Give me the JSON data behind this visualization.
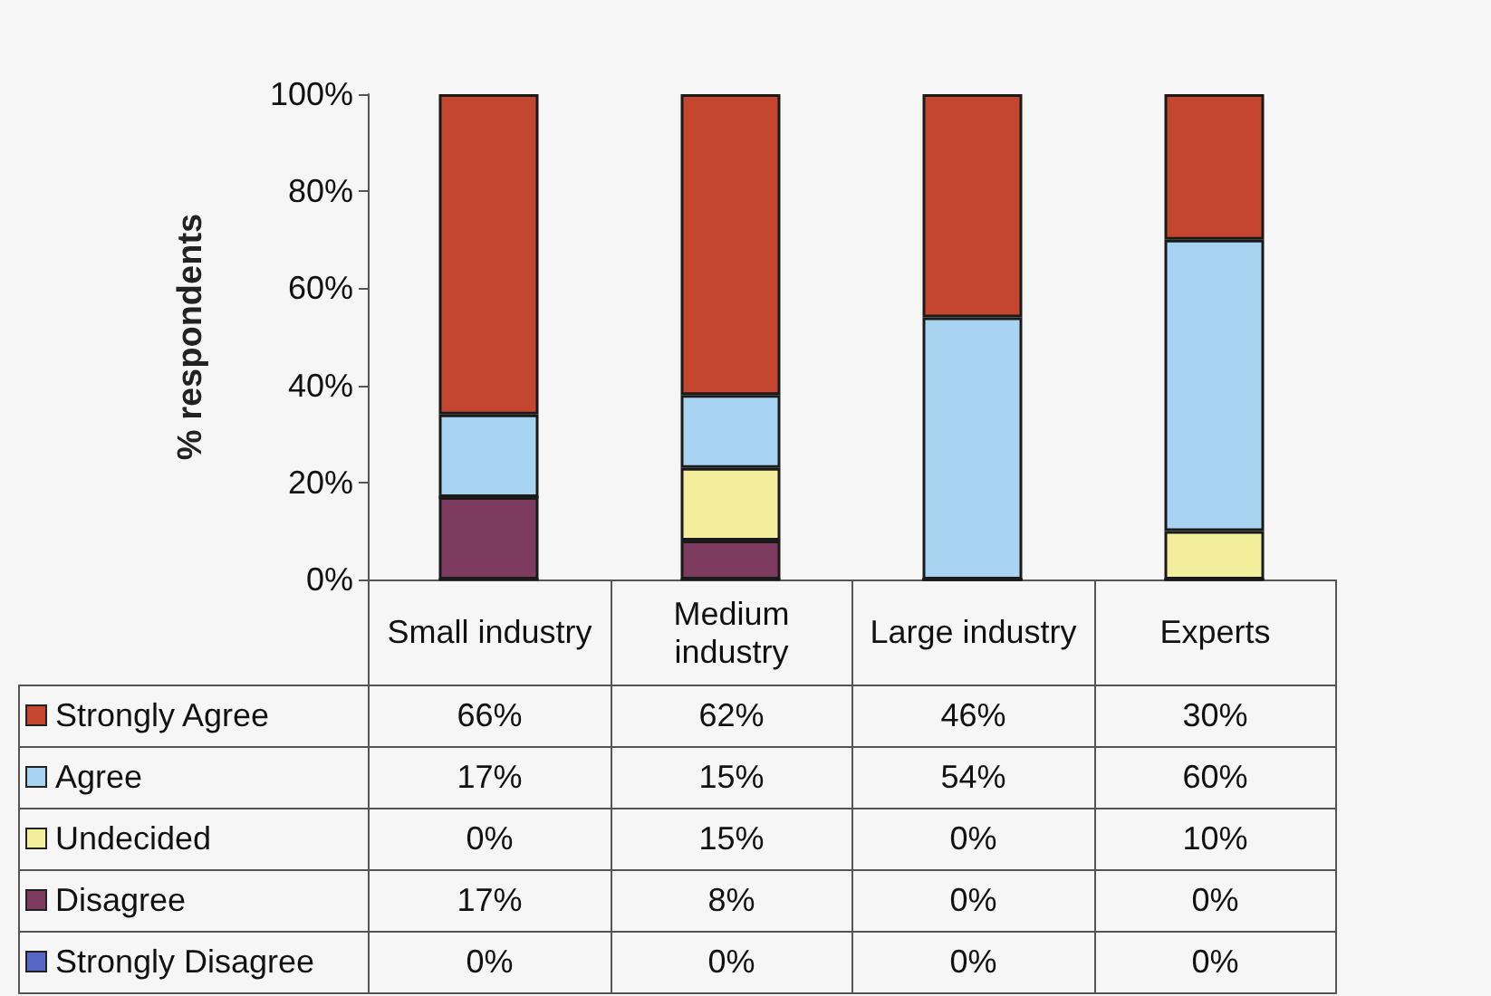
{
  "chart_data": {
    "type": "bar",
    "stacked": true,
    "ylabel": "% respondents",
    "categories": [
      "Small industry",
      "Medium industry",
      "Large industry",
      "Experts"
    ],
    "ylim": [
      0,
      100
    ],
    "yticks": [
      {
        "value": 0,
        "label": "0%"
      },
      {
        "value": 20,
        "label": "20%"
      },
      {
        "value": 40,
        "label": "40%"
      },
      {
        "value": 60,
        "label": "60%"
      },
      {
        "value": 80,
        "label": "80%"
      },
      {
        "value": 100,
        "label": "100%"
      }
    ],
    "legend": "bottom left",
    "series": [
      {
        "name": "Strongly Disagree",
        "color": "#5566c5",
        "values": [
          0,
          0,
          0,
          0
        ],
        "value_labels": [
          "0%",
          "0%",
          "0%",
          "0%"
        ]
      },
      {
        "name": "Disagree",
        "color": "#7d3b5f",
        "values": [
          17,
          8,
          0,
          0
        ],
        "value_labels": [
          "17%",
          "8%",
          "0%",
          "0%"
        ]
      },
      {
        "name": "Undecided",
        "color": "#f3ee9c",
        "values": [
          0,
          15,
          0,
          10
        ],
        "value_labels": [
          "0%",
          "15%",
          "0%",
          "10%"
        ]
      },
      {
        "name": "Agree",
        "color": "#a8d4f2",
        "values": [
          17,
          15,
          54,
          60
        ],
        "value_labels": [
          "17%",
          "15%",
          "54%",
          "60%"
        ]
      },
      {
        "name": "Strongly Agree",
        "color": "#c4462f",
        "values": [
          66,
          62,
          46,
          30
        ],
        "value_labels": [
          "66%",
          "62%",
          "46%",
          "30%"
        ]
      }
    ]
  }
}
